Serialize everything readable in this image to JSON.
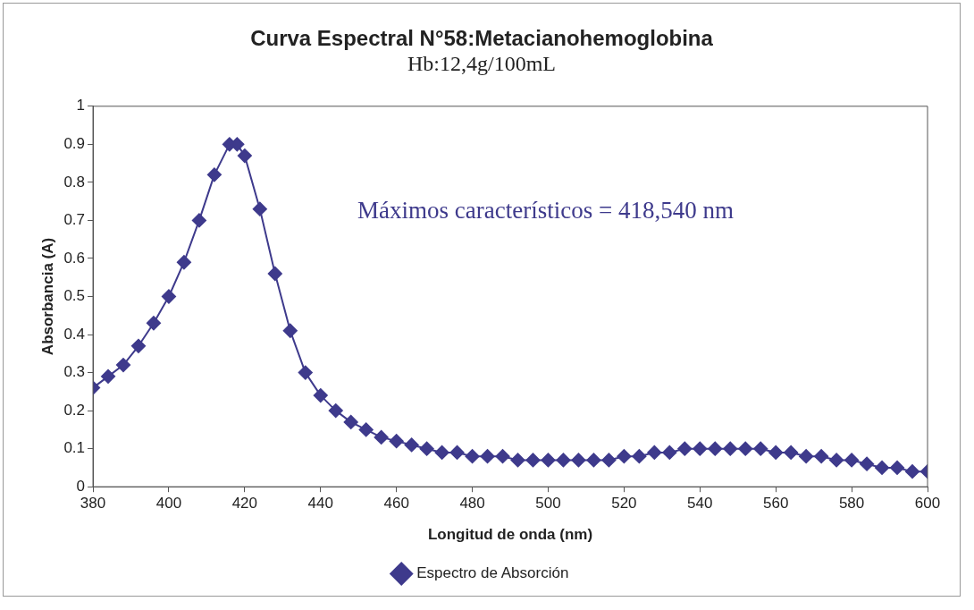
{
  "chart_data": {
    "type": "line",
    "title": "Curva Espectral N°58:Metacianohemoglobina",
    "subtitle": "Hb:12,4g/100mL",
    "xlabel": "Longitud de onda (nm)",
    "ylabel": "Absorbancia (A)",
    "annotations": [
      "Máximos característicos = 418,540 nm"
    ],
    "x": [
      380,
      384,
      388,
      392,
      396,
      400,
      404,
      408,
      412,
      416,
      418,
      420,
      424,
      428,
      432,
      436,
      440,
      444,
      448,
      452,
      456,
      460,
      464,
      468,
      472,
      476,
      480,
      484,
      488,
      492,
      496,
      500,
      504,
      508,
      512,
      516,
      520,
      524,
      528,
      532,
      536,
      540,
      544,
      548,
      552,
      556,
      560,
      564,
      568,
      572,
      576,
      580,
      584,
      588,
      592,
      596,
      600
    ],
    "series": [
      {
        "name": "Espectro de Absorción",
        "color": "#3e3a8c",
        "values": [
          0.26,
          0.29,
          0.32,
          0.37,
          0.43,
          0.5,
          0.59,
          0.7,
          0.82,
          0.9,
          0.9,
          0.87,
          0.73,
          0.56,
          0.41,
          0.3,
          0.24,
          0.2,
          0.17,
          0.15,
          0.13,
          0.12,
          0.11,
          0.1,
          0.09,
          0.09,
          0.08,
          0.08,
          0.08,
          0.07,
          0.07,
          0.07,
          0.07,
          0.07,
          0.07,
          0.07,
          0.08,
          0.08,
          0.09,
          0.09,
          0.1,
          0.1,
          0.1,
          0.1,
          0.1,
          0.1,
          0.09,
          0.09,
          0.08,
          0.08,
          0.07,
          0.07,
          0.06,
          0.05,
          0.05,
          0.04,
          0.04
        ]
      }
    ],
    "xlim": [
      380,
      600
    ],
    "xticks": [
      380,
      400,
      420,
      440,
      460,
      480,
      500,
      520,
      540,
      560,
      580,
      600
    ],
    "ylim": [
      0,
      1
    ],
    "yticks": [
      0,
      0.1,
      0.2,
      0.3,
      0.4,
      0.5,
      0.6,
      0.7,
      0.8,
      0.9,
      1
    ],
    "grid": false,
    "legend": "bottom",
    "marker": "diamond",
    "line_style": "solid"
  }
}
